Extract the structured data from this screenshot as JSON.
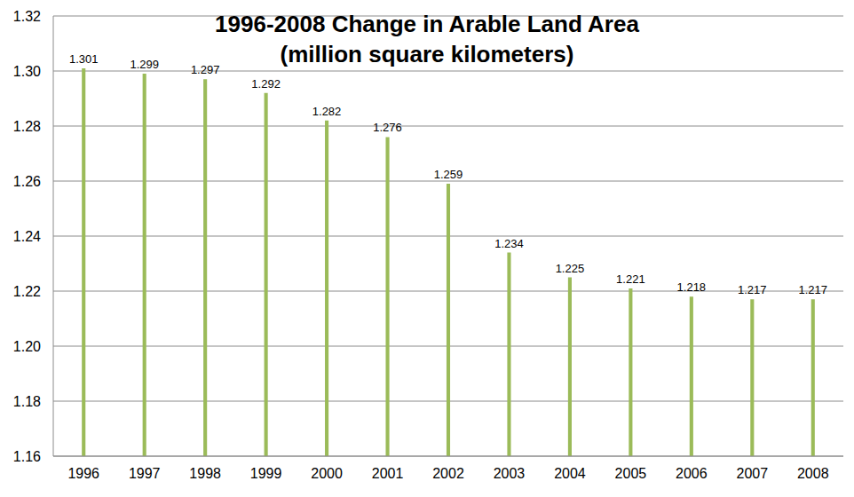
{
  "chart_data": {
    "type": "bar",
    "title": "1996-2008 Change in Arable Land Area",
    "subtitle": "(million square kilometers)",
    "categories": [
      "1996",
      "1997",
      "1998",
      "1999",
      "2000",
      "2001",
      "2002",
      "2003",
      "2004",
      "2005",
      "2006",
      "2007",
      "2008"
    ],
    "values": [
      1.301,
      1.299,
      1.297,
      1.292,
      1.282,
      1.276,
      1.259,
      1.234,
      1.225,
      1.221,
      1.218,
      1.217,
      1.217
    ],
    "color": "#9bbb59",
    "ylim": [
      1.16,
      1.32
    ],
    "yticks": [
      1.16,
      1.18,
      {
        "value": 1.2,
        "label": "1.20"
      },
      1.22,
      1.24,
      1.26,
      1.28,
      {
        "value": 1.3,
        "label": "1.30"
      },
      1.32
    ],
    "grid": true,
    "data_labels": true
  }
}
